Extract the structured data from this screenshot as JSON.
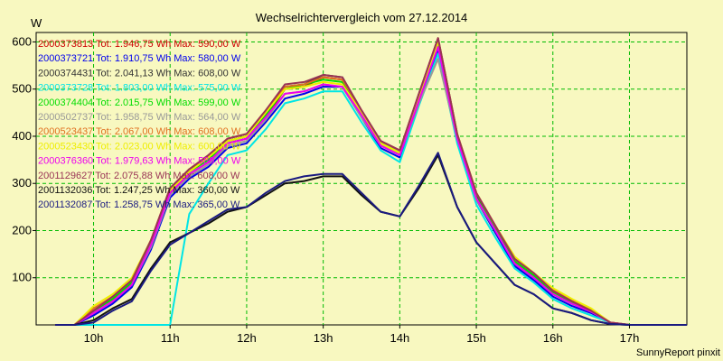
{
  "chart_data": {
    "type": "line",
    "title": "Wechselrichtervergleich vom 27.12.2014",
    "ylabel": "W",
    "footer": "SunnyReport pinxit",
    "ylim": [
      0,
      620
    ],
    "xlim": [
      9.25,
      17.75
    ],
    "y_ticks": [
      100,
      200,
      300,
      400,
      500,
      600
    ],
    "x_ticks": [
      {
        "value": 10,
        "label": "10h"
      },
      {
        "value": 11,
        "label": "11h"
      },
      {
        "value": 12,
        "label": "12h"
      },
      {
        "value": 13,
        "label": "13h"
      },
      {
        "value": 14,
        "label": "14h"
      },
      {
        "value": 15,
        "label": "15h"
      },
      {
        "value": 16,
        "label": "16h"
      },
      {
        "value": 17,
        "label": "17h"
      }
    ],
    "grid": true,
    "legend_position": "top-left",
    "x": [
      9.5,
      9.75,
      10,
      10.25,
      10.5,
      10.75,
      11,
      11.25,
      11.5,
      11.75,
      12,
      12.25,
      12.5,
      12.75,
      13,
      13.25,
      13.5,
      13.75,
      14,
      14.25,
      14.5,
      14.75,
      15,
      15.25,
      15.5,
      15.75,
      16,
      16.25,
      16.5,
      16.75,
      17,
      17.25,
      17.5,
      17.75
    ],
    "series": [
      {
        "name": "2000373813",
        "legend": "2000373813 Tot: 1.946,75 Wh Max: 590,00 W",
        "color": "#cc0000",
        "values": [
          0,
          0,
          25,
          50,
          85,
          170,
          280,
          320,
          345,
          385,
          395,
          440,
          500,
          505,
          525,
          520,
          450,
          385,
          365,
          480,
          590,
          400,
          270,
          200,
          130,
          100,
          65,
          45,
          30,
          5,
          0,
          0,
          0,
          0
        ]
      },
      {
        "name": "2000373721",
        "legend": "2000373721 Tot: 1.910,75 Wh Max: 580,00 W",
        "color": "#0000ee",
        "values": [
          0,
          0,
          20,
          45,
          80,
          160,
          270,
          310,
          335,
          375,
          385,
          430,
          480,
          490,
          505,
          505,
          440,
          375,
          355,
          470,
          580,
          390,
          265,
          195,
          125,
          95,
          60,
          40,
          25,
          5,
          0,
          0,
          0,
          0
        ]
      },
      {
        "name": "2000374431",
        "legend": "2000374431 Tot: 2.041,13 Wh Max: 608,00 W",
        "color": "#333333",
        "values": [
          0,
          0,
          30,
          55,
          90,
          175,
          290,
          330,
          355,
          390,
          400,
          450,
          505,
          510,
          530,
          525,
          455,
          390,
          370,
          490,
          608,
          405,
          275,
          205,
          135,
          105,
          70,
          50,
          30,
          5,
          0,
          0,
          0,
          0
        ]
      },
      {
        "name": "2000373728",
        "legend": "2000373728 Tot: 1.803,00 Wh Max: 575,00 W",
        "color": "#00e5e5",
        "values": [
          0,
          0,
          0,
          0,
          0,
          0,
          0,
          235,
          300,
          360,
          370,
          415,
          470,
          480,
          495,
          495,
          430,
          370,
          345,
          465,
          575,
          385,
          255,
          185,
          120,
          90,
          55,
          35,
          20,
          5,
          0,
          0,
          0,
          0
        ]
      },
      {
        "name": "2000374404",
        "legend": "2000374404 Tot: 2.015,75 Wh Max: 599,00 W",
        "color": "#00dd00",
        "values": [
          0,
          0,
          30,
          55,
          90,
          175,
          285,
          325,
          350,
          390,
          400,
          445,
          500,
          510,
          520,
          515,
          450,
          385,
          365,
          485,
          599,
          400,
          270,
          205,
          135,
          105,
          70,
          48,
          30,
          5,
          0,
          0,
          0,
          0
        ]
      },
      {
        "name": "2000502737",
        "legend": "2000502737 Tot: 1.958,75 Wh Max: 564,00 W",
        "color": "#999999",
        "values": [
          0,
          0,
          25,
          50,
          85,
          165,
          275,
          315,
          340,
          380,
          390,
          435,
          490,
          495,
          510,
          505,
          440,
          380,
          360,
          470,
          564,
          395,
          265,
          200,
          130,
          100,
          65,
          45,
          28,
          5,
          0,
          0,
          0,
          0
        ]
      },
      {
        "name": "2000523437",
        "legend": "2000523437 Tot: 2.067,00 Wh Max: 608,00 W",
        "color": "#e07020",
        "values": [
          0,
          0,
          35,
          60,
          95,
          180,
          290,
          330,
          360,
          395,
          405,
          455,
          505,
          510,
          525,
          520,
          455,
          390,
          370,
          490,
          608,
          405,
          280,
          210,
          140,
          110,
          75,
          52,
          32,
          5,
          0,
          0,
          0,
          0
        ]
      },
      {
        "name": "2000523430",
        "legend": "2000523430 Tot: 2.023,00 Wh Max: 600,00 W",
        "color": "#eeee00",
        "values": [
          0,
          0,
          40,
          65,
          100,
          180,
          285,
          325,
          355,
          390,
          400,
          450,
          500,
          505,
          515,
          510,
          450,
          385,
          365,
          485,
          600,
          405,
          280,
          210,
          145,
          110,
          78,
          55,
          35,
          5,
          0,
          0,
          0,
          0
        ]
      },
      {
        "name": "2000376360",
        "legend": "2000376360 Tot: 1.979,63 Wh Max: 589,00 W",
        "color": "#ee00ee",
        "values": [
          0,
          0,
          25,
          50,
          85,
          170,
          280,
          320,
          345,
          385,
          395,
          440,
          490,
          495,
          510,
          505,
          445,
          380,
          360,
          475,
          589,
          395,
          268,
          200,
          130,
          100,
          65,
          45,
          28,
          5,
          0,
          0,
          0,
          0
        ]
      },
      {
        "name": "2001129627",
        "legend": "2001129627 Tot: 2.075,88 Wh Max: 608,00 W",
        "color": "#993355",
        "values": [
          0,
          0,
          30,
          60,
          95,
          180,
          290,
          330,
          360,
          395,
          405,
          455,
          510,
          515,
          530,
          525,
          455,
          390,
          370,
          490,
          608,
          405,
          280,
          210,
          140,
          110,
          72,
          50,
          30,
          5,
          0,
          0,
          0,
          0
        ]
      },
      {
        "name": "2001132036",
        "legend": "2001132036 Tot: 1.247,25 Wh Max: 360,00 W",
        "color": "#111111",
        "values": [
          0,
          0,
          10,
          35,
          55,
          120,
          175,
          195,
          215,
          240,
          250,
          275,
          300,
          305,
          315,
          315,
          275,
          240,
          230,
          290,
          360,
          250,
          175,
          130,
          85,
          65,
          35,
          25,
          10,
          2,
          0,
          0,
          0,
          0
        ]
      },
      {
        "name": "2001132087",
        "legend": "2001132087 Tot: 1.258,75 Wh Max: 365,00 W",
        "color": "#1a1a80",
        "values": [
          0,
          0,
          5,
          30,
          50,
          115,
          170,
          195,
          220,
          245,
          250,
          280,
          305,
          315,
          320,
          320,
          280,
          240,
          230,
          295,
          365,
          250,
          175,
          130,
          85,
          65,
          35,
          25,
          10,
          2,
          0,
          0,
          0,
          0
        ]
      }
    ]
  }
}
